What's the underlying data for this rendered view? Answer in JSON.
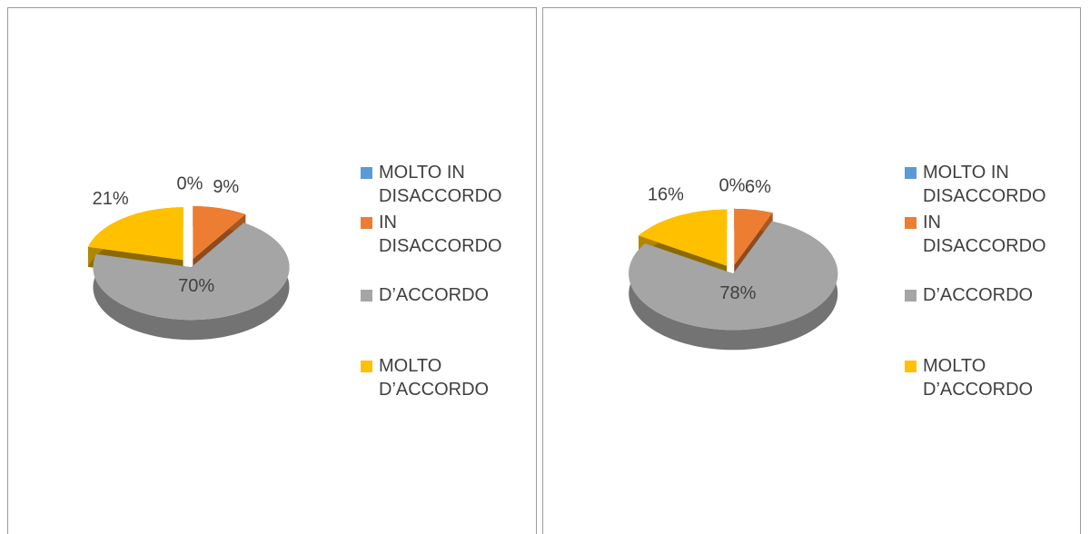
{
  "chart_data": [
    {
      "type": "pie",
      "categories": [
        "MOLTO IN DISACCORDO",
        "IN DISACCORDO",
        "D’ACCORDO",
        "MOLTO D’ACCORDO"
      ],
      "values": [
        0,
        9,
        70,
        21
      ],
      "value_labels": [
        "0%",
        "9%",
        "70%",
        "21%"
      ],
      "colors": [
        "#5b9bd5",
        "#ed7d31",
        "#a5a5a5",
        "#ffc000"
      ],
      "legend": "right"
    },
    {
      "type": "pie",
      "categories": [
        "MOLTO IN DISACCORDO",
        "IN DISACCORDO",
        "D’ACCORDO",
        "MOLTO D’ACCORDO"
      ],
      "values": [
        0,
        6,
        78,
        16
      ],
      "value_labels": [
        "0%",
        "6%",
        "78%",
        "16%"
      ],
      "colors": [
        "#5b9bd5",
        "#ed7d31",
        "#a5a5a5",
        "#ffc000"
      ],
      "legend": "right"
    }
  ]
}
